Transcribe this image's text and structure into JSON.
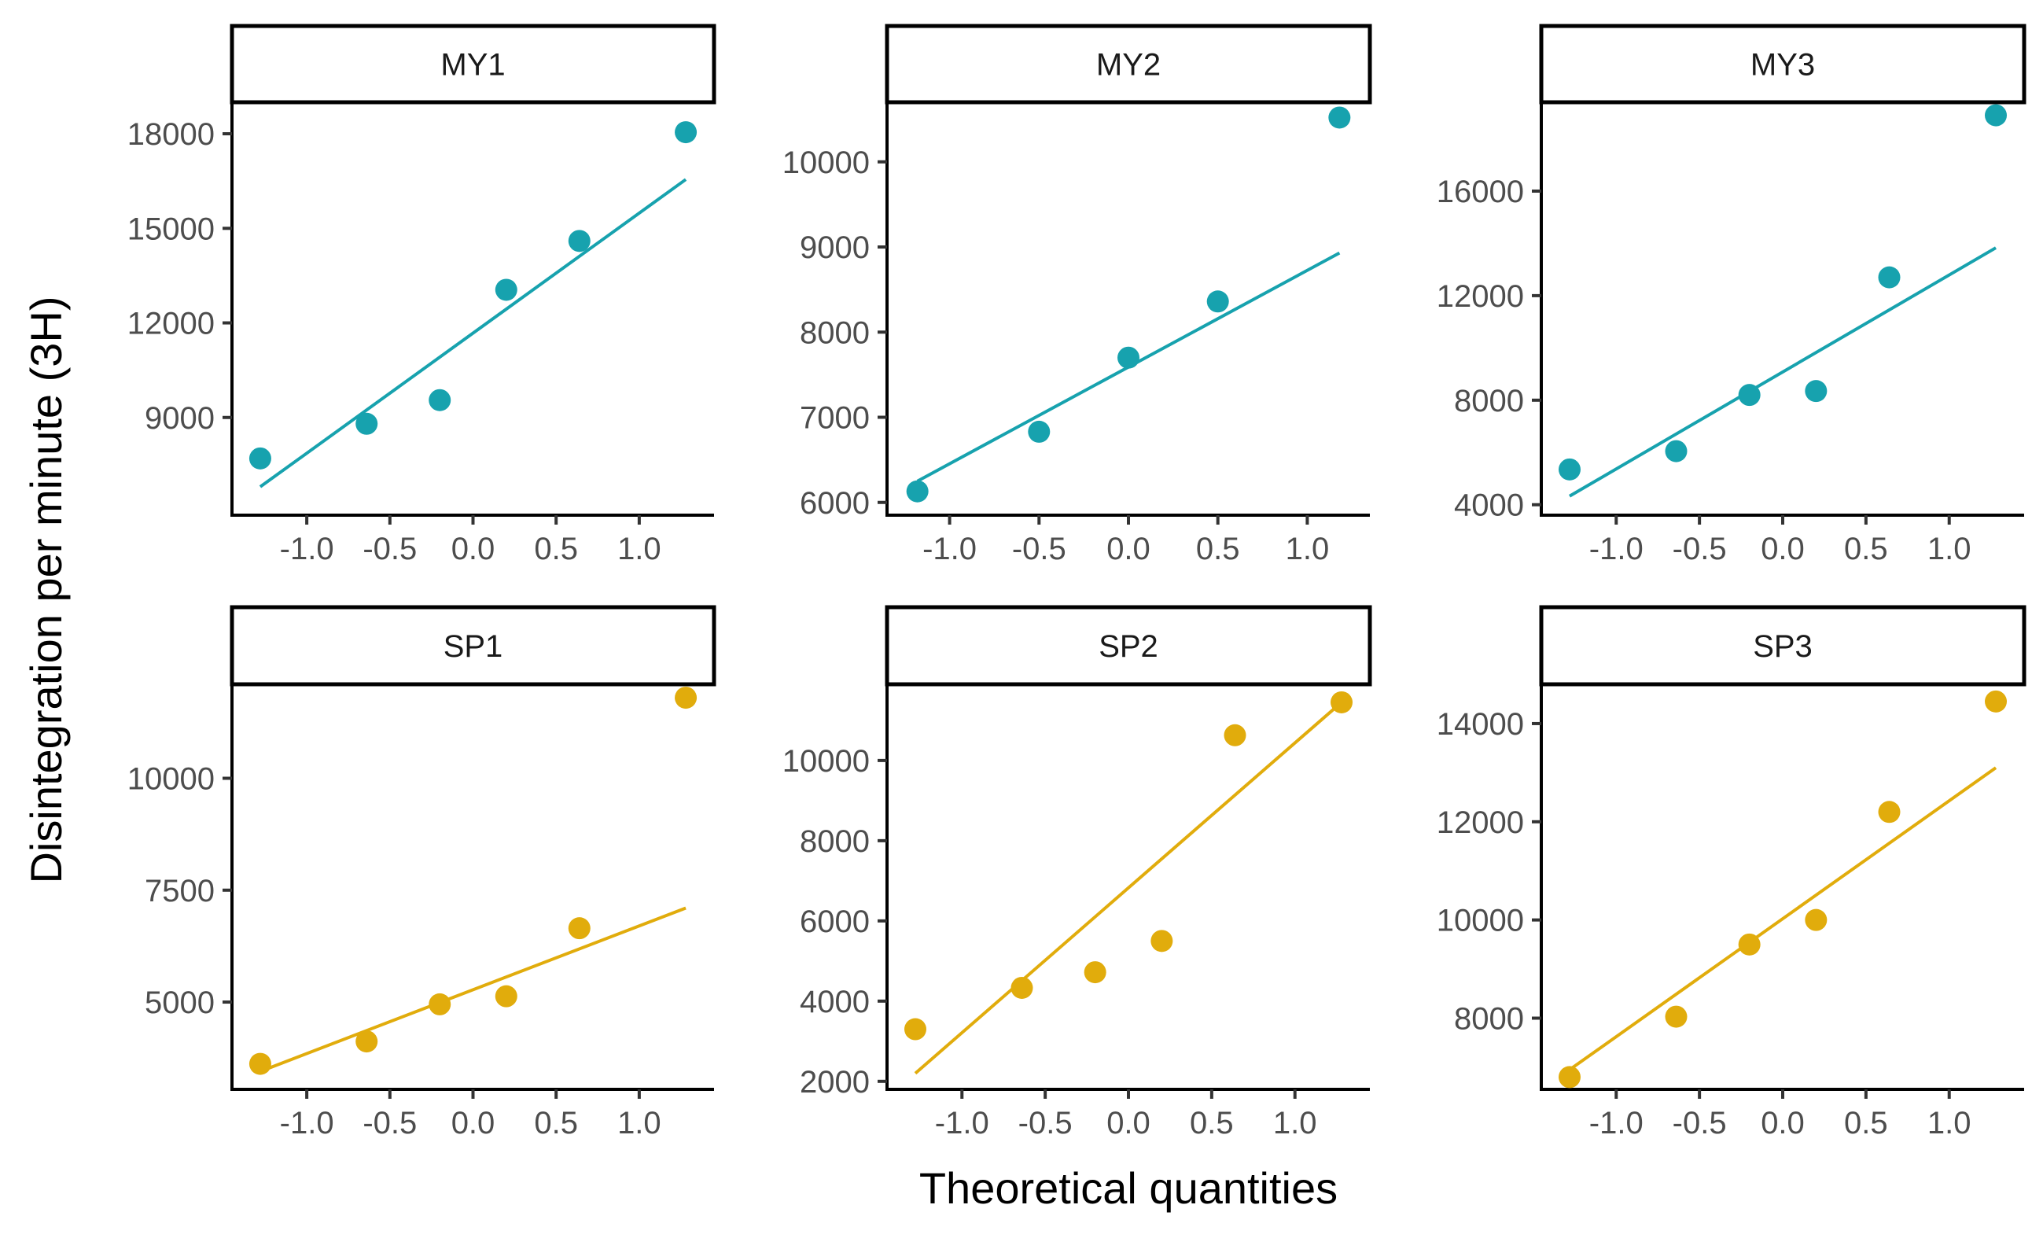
{
  "chart_data": {
    "type": "scatter",
    "kind": "qq-plot facets",
    "xlabel": "Theoretical quantities",
    "ylabel": "Disintegration per minute (3H)",
    "grid": false,
    "legend": "none",
    "colors": {
      "MY": "#17A2AE",
      "SP": "#E1AC0C"
    },
    "panels": [
      {
        "name": "MY1",
        "group": "MY",
        "xlim": [
          -1.45,
          1.45
        ],
        "ylim": [
          5900,
          19000
        ],
        "xticks": [
          -1.0,
          -0.5,
          0.0,
          0.5,
          1.0
        ],
        "yticks": [
          9000,
          12000,
          15000,
          18000
        ],
        "x": [
          -1.28,
          -0.64,
          -0.2,
          0.2,
          0.64,
          1.28
        ],
        "y": [
          7700,
          8800,
          9550,
          13050,
          14600,
          18050
        ],
        "line": {
          "x": [
            -1.28,
            1.28
          ],
          "y": [
            6800,
            16550
          ]
        }
      },
      {
        "name": "MY2",
        "group": "MY",
        "xlim": [
          -1.35,
          1.35
        ],
        "ylim": [
          5850,
          10700
        ],
        "xticks": [
          -1.0,
          -0.5,
          0.0,
          0.5,
          1.0
        ],
        "yticks": [
          6000,
          7000,
          8000,
          9000,
          10000
        ],
        "x": [
          -1.18,
          -0.5,
          0.0,
          0.5,
          1.18
        ],
        "y": [
          6130,
          6830,
          7700,
          8360,
          10520
        ],
        "line": {
          "x": [
            -1.18,
            1.18
          ],
          "y": [
            6250,
            8930
          ]
        }
      },
      {
        "name": "MY3",
        "group": "MY",
        "xlim": [
          -1.45,
          1.45
        ],
        "ylim": [
          3600,
          19400
        ],
        "xticks": [
          -1.0,
          -0.5,
          0.0,
          0.5,
          1.0
        ],
        "yticks": [
          4000,
          8000,
          12000,
          16000
        ],
        "x": [
          -1.28,
          -0.64,
          -0.2,
          0.2,
          0.64,
          1.28
        ],
        "y": [
          5350,
          6050,
          8200,
          8350,
          12700,
          18900
        ],
        "line": {
          "x": [
            -1.28,
            1.28
          ],
          "y": [
            4330,
            13830
          ]
        }
      },
      {
        "name": "SP1",
        "group": "SP",
        "xlim": [
          -1.45,
          1.45
        ],
        "ylim": [
          3050,
          12100
        ],
        "xticks": [
          -1.0,
          -0.5,
          0.0,
          0.5,
          1.0
        ],
        "yticks": [
          5000,
          7500,
          10000
        ],
        "x": [
          -1.28,
          -0.64,
          -0.2,
          0.2,
          0.64,
          1.28
        ],
        "y": [
          3620,
          4120,
          4950,
          5130,
          6650,
          11800
        ],
        "line": {
          "x": [
            -1.28,
            1.28
          ],
          "y": [
            3450,
            7100
          ]
        }
      },
      {
        "name": "SP2",
        "group": "SP",
        "xlim": [
          -1.45,
          1.45
        ],
        "ylim": [
          1800,
          11900
        ],
        "xticks": [
          -1.0,
          -0.5,
          0.0,
          0.5,
          1.0
        ],
        "yticks": [
          2000,
          4000,
          6000,
          8000,
          10000
        ],
        "x": [
          -1.28,
          -0.64,
          -0.2,
          0.2,
          0.64,
          1.28
        ],
        "y": [
          3300,
          4330,
          4720,
          5500,
          10630,
          11450
        ],
        "line": {
          "x": [
            -1.28,
            1.28
          ],
          "y": [
            2200,
            11450
          ]
        }
      },
      {
        "name": "SP3",
        "group": "SP",
        "xlim": [
          -1.45,
          1.45
        ],
        "ylim": [
          6550,
          14800
        ],
        "xticks": [
          -1.0,
          -0.5,
          0.0,
          0.5,
          1.0
        ],
        "yticks": [
          8000,
          10000,
          12000,
          14000
        ],
        "x": [
          -1.28,
          -0.64,
          -0.2,
          0.2,
          0.64,
          1.28
        ],
        "y": [
          6800,
          8030,
          9500,
          10000,
          12200,
          14450
        ],
        "line": {
          "x": [
            -1.28,
            1.28
          ],
          "y": [
            6950,
            13100
          ]
        }
      }
    ]
  }
}
